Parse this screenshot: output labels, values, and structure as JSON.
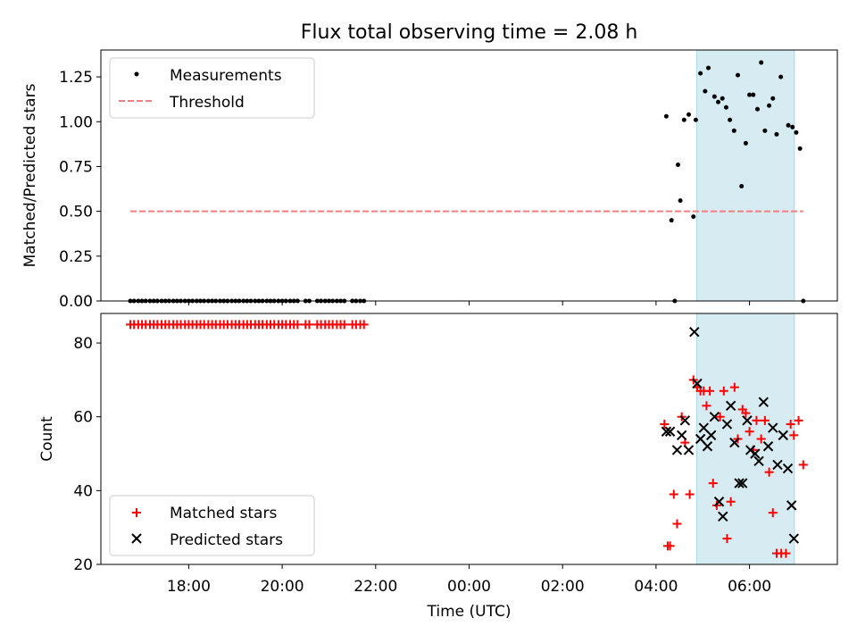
{
  "chart_data": [
    {
      "type": "scatter",
      "title": "Flux total observing time = 2.08 h",
      "xlabel": "",
      "ylabel": "Matched/Predicted stars",
      "ylim": [
        0,
        1.4
      ],
      "yticks": [
        0.0,
        0.25,
        0.5,
        0.75,
        1.0,
        1.25
      ],
      "ytick_labels": [
        "0.00",
        "0.25",
        "0.50",
        "0.75",
        "1.00",
        "1.25"
      ],
      "xlim_hours": [
        16.12,
        31.88
      ],
      "highlight_span_hours": [
        28.87,
        30.96
      ],
      "threshold": {
        "label": "Threshold",
        "value": 0.5,
        "x_start_hours": 16.75,
        "x_end_hours": 31.15,
        "color": "#f08080"
      },
      "legend": [
        "Measurements",
        "Threshold"
      ],
      "legend_position": "top-left",
      "series": [
        {
          "name": "Measurements",
          "x_hours": [
            16.75,
            16.83,
            16.92,
            17.0,
            17.08,
            17.17,
            17.25,
            17.33,
            17.42,
            17.5,
            17.58,
            17.67,
            17.75,
            17.83,
            17.92,
            18.0,
            18.08,
            18.17,
            18.25,
            18.33,
            18.42,
            18.5,
            18.58,
            18.67,
            18.75,
            18.83,
            18.92,
            19.0,
            19.08,
            19.17,
            19.25,
            19.33,
            19.42,
            19.5,
            19.58,
            19.67,
            19.75,
            19.83,
            19.92,
            20.0,
            20.08,
            20.17,
            20.25,
            20.33,
            20.5,
            20.58,
            20.75,
            20.83,
            20.92,
            21.0,
            21.08,
            21.17,
            21.25,
            21.33,
            21.5,
            21.58,
            21.67,
            21.75,
            28.22,
            28.33,
            28.4,
            28.47,
            28.52,
            28.6,
            28.7,
            28.8,
            28.85,
            28.95,
            29.05,
            29.12,
            29.25,
            29.33,
            29.42,
            29.5,
            29.58,
            29.67,
            29.75,
            29.83,
            29.92,
            30.0,
            30.08,
            30.17,
            30.25,
            30.33,
            30.42,
            30.5,
            30.58,
            30.67,
            30.83,
            30.92,
            31.0,
            31.08,
            31.15
          ],
          "y": [
            0,
            0,
            0,
            0,
            0,
            0,
            0,
            0,
            0,
            0,
            0,
            0,
            0,
            0,
            0,
            0,
            0,
            0,
            0,
            0,
            0,
            0,
            0,
            0,
            0,
            0,
            0,
            0,
            0,
            0,
            0,
            0,
            0,
            0,
            0,
            0,
            0,
            0,
            0,
            0,
            0,
            0,
            0,
            0,
            0,
            0,
            0,
            0,
            0,
            0,
            0,
            0,
            0,
            0,
            0,
            0,
            0,
            0,
            1.03,
            0.45,
            0.0,
            0.76,
            0.56,
            1.01,
            1.04,
            0.47,
            1.01,
            1.27,
            1.17,
            1.3,
            1.14,
            1.11,
            1.13,
            1.08,
            1.01,
            0.95,
            1.26,
            0.64,
            0.88,
            1.15,
            1.15,
            1.07,
            1.33,
            0.95,
            1.09,
            1.13,
            0.93,
            1.25,
            0.98,
            0.97,
            0.94,
            0.85,
            0.0
          ]
        }
      ]
    },
    {
      "type": "scatter",
      "title": "",
      "xlabel": "Time (UTC)",
      "ylabel": "Count",
      "ylim": [
        20,
        88
      ],
      "yticks": [
        20,
        40,
        60,
        80
      ],
      "ytick_labels": [
        "20",
        "40",
        "60",
        "80"
      ],
      "xlim_hours": [
        16.12,
        31.88
      ],
      "xticks_hours": [
        18,
        20,
        22,
        24,
        26,
        28,
        30
      ],
      "xtick_labels": [
        "18:00",
        "20:00",
        "22:00",
        "00:00",
        "02:00",
        "04:00",
        "06:00"
      ],
      "highlight_span_hours": [
        28.87,
        30.96
      ],
      "legend": [
        "Matched stars",
        "Predicted stars"
      ],
      "legend_position": "bottom-left",
      "series": [
        {
          "name": "Matched stars",
          "marker": "+",
          "color": "#ff0000",
          "x_hours": [
            16.75,
            16.83,
            16.92,
            17.0,
            17.08,
            17.17,
            17.25,
            17.33,
            17.42,
            17.5,
            17.58,
            17.67,
            17.75,
            17.83,
            17.92,
            18.0,
            18.08,
            18.17,
            18.25,
            18.33,
            18.42,
            18.5,
            18.58,
            18.67,
            18.75,
            18.83,
            18.92,
            19.0,
            19.08,
            19.17,
            19.25,
            19.33,
            19.42,
            19.5,
            19.58,
            19.67,
            19.75,
            19.83,
            19.92,
            20.0,
            20.08,
            20.17,
            20.25,
            20.33,
            20.5,
            20.58,
            20.75,
            20.83,
            20.92,
            21.0,
            21.08,
            21.17,
            21.25,
            21.33,
            21.5,
            21.58,
            21.67,
            21.75,
            28.18,
            28.25,
            28.3,
            28.38,
            28.45,
            28.55,
            28.62,
            28.72,
            28.8,
            28.88,
            28.95,
            29.02,
            29.08,
            29.15,
            29.22,
            29.3,
            29.37,
            29.45,
            29.52,
            29.6,
            29.68,
            29.75,
            29.85,
            29.92,
            30.0,
            30.08,
            30.15,
            30.25,
            30.33,
            30.42,
            30.5,
            30.58,
            30.68,
            30.78,
            30.88,
            30.95,
            31.05,
            31.15
          ],
          "y": [
            85,
            85,
            85,
            85,
            85,
            85,
            85,
            85,
            85,
            85,
            85,
            85,
            85,
            85,
            85,
            85,
            85,
            85,
            85,
            85,
            85,
            85,
            85,
            85,
            85,
            85,
            85,
            85,
            85,
            85,
            85,
            85,
            85,
            85,
            85,
            85,
            85,
            85,
            85,
            85,
            85,
            85,
            85,
            85,
            85,
            85,
            85,
            85,
            85,
            85,
            85,
            85,
            85,
            85,
            85,
            85,
            85,
            85,
            58,
            25,
            25,
            39,
            31,
            60,
            53,
            39,
            70,
            68,
            67,
            67,
            63,
            67,
            42,
            36,
            60,
            67,
            27,
            37,
            68,
            54,
            62,
            61,
            56,
            51,
            59,
            54,
            59,
            45,
            34,
            23,
            23,
            23,
            58,
            55,
            59,
            47
          ]
        },
        {
          "name": "Predicted stars",
          "marker": "x",
          "color": "#000000",
          "x_hours": [
            28.22,
            28.3,
            28.45,
            28.55,
            28.62,
            28.7,
            28.82,
            28.88,
            28.95,
            29.02,
            29.1,
            29.18,
            29.25,
            29.35,
            29.43,
            29.52,
            29.6,
            29.68,
            29.78,
            29.85,
            29.95,
            30.02,
            30.12,
            30.2,
            30.3,
            30.4,
            30.5,
            30.6,
            30.72,
            30.82,
            30.9,
            30.95
          ],
          "y": [
            56,
            56,
            51,
            55,
            59,
            51,
            83,
            69,
            54,
            57,
            52,
            55,
            60,
            37,
            33,
            58,
            63,
            53,
            42,
            42,
            59,
            51,
            50,
            48,
            64,
            52,
            57,
            47,
            55,
            46,
            36,
            27
          ]
        }
      ]
    }
  ]
}
